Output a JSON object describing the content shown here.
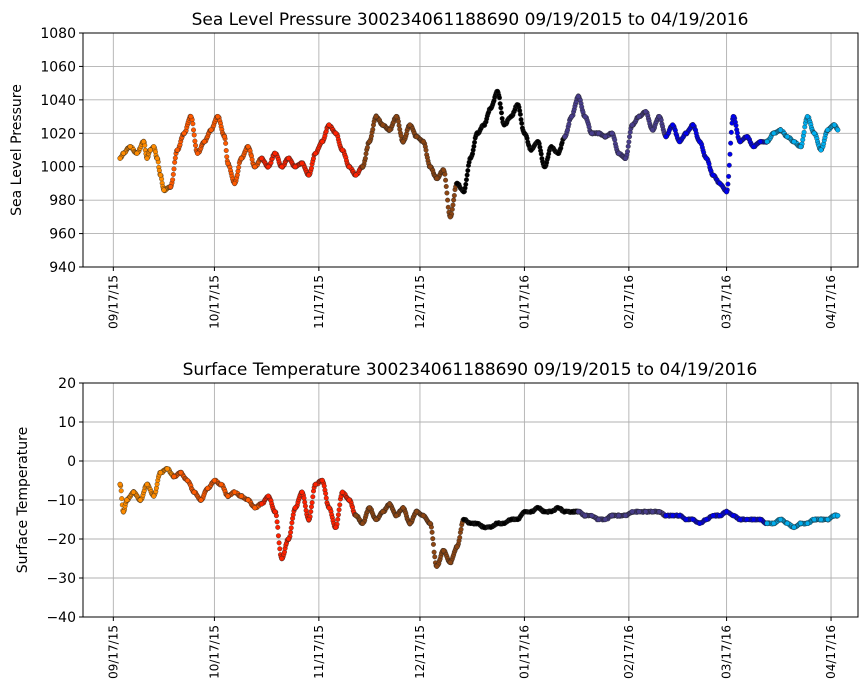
{
  "chart_data": [
    {
      "type": "scatter",
      "title": "Sea Level Pressure 300234061188690  09/19/2015 to 04/19/2016",
      "xlabel": "",
      "ylabel": "Sea Level Pressure",
      "ylim": [
        940,
        1080
      ],
      "yticks": [
        940,
        960,
        980,
        1000,
        1020,
        1040,
        1060,
        1080
      ],
      "xlim": [
        "2015-09-08",
        "2016-04-25"
      ],
      "xticks": [
        "2015-09-17",
        "2015-10-17",
        "2015-11-17",
        "2015-12-17",
        "2016-01-17",
        "2016-02-17",
        "2016-03-17",
        "2016-04-17"
      ],
      "xtick_labels": [
        "09/17/15",
        "10/17/15",
        "11/17/15",
        "12/17/15",
        "01/17/16",
        "02/17/16",
        "03/17/16",
        "04/17/16"
      ],
      "grid": true,
      "series": [
        {
          "color": "#ff8c00",
          "x": [
            "2015-09-19",
            "2015-09-20",
            "2015-09-22",
            "2015-09-24",
            "2015-09-26",
            "2015-09-27",
            "2015-09-28",
            "2015-09-29",
            "2015-09-30",
            "2015-10-01",
            "2015-10-02",
            "2015-10-04"
          ],
          "values": [
            1005,
            1008,
            1012,
            1008,
            1015,
            1005,
            1010,
            1012,
            1005,
            995,
            986,
            988
          ]
        },
        {
          "color": "#ff5a00",
          "x": [
            "2015-10-04",
            "2015-10-06",
            "2015-10-08",
            "2015-10-10",
            "2015-10-12",
            "2015-10-14",
            "2015-10-16",
            "2015-10-18",
            "2015-10-20",
            "2015-10-21",
            "2015-10-23",
            "2015-10-25",
            "2015-10-27",
            "2015-10-29",
            "2015-10-31"
          ],
          "values": [
            988,
            1010,
            1020,
            1030,
            1008,
            1015,
            1022,
            1030,
            1018,
            1002,
            990,
            1005,
            1012,
            1000,
            1005
          ]
        },
        {
          "color": "#ff2200",
          "x": [
            "2015-10-31",
            "2015-11-02",
            "2015-11-04",
            "2015-11-06",
            "2015-11-08",
            "2015-11-10",
            "2015-11-12",
            "2015-11-14",
            "2015-11-16",
            "2015-11-18",
            "2015-11-20",
            "2015-11-22",
            "2015-11-24",
            "2015-11-26",
            "2015-11-28",
            "2015-11-30"
          ],
          "values": [
            1005,
            1000,
            1008,
            1000,
            1005,
            1000,
            1002,
            995,
            1008,
            1015,
            1025,
            1020,
            1010,
            1000,
            995,
            1000
          ]
        },
        {
          "color": "#8b4513",
          "x": [
            "2015-11-30",
            "2015-12-02",
            "2015-12-04",
            "2015-12-06",
            "2015-12-08",
            "2015-12-10",
            "2015-12-12",
            "2015-12-14",
            "2015-12-16",
            "2015-12-18",
            "2015-12-20",
            "2015-12-22",
            "2015-12-24",
            "2015-12-26",
            "2015-12-28"
          ],
          "values": [
            1000,
            1015,
            1030,
            1025,
            1022,
            1030,
            1015,
            1025,
            1018,
            1015,
            1000,
            993,
            998,
            970,
            990
          ]
        },
        {
          "color": "#000000",
          "x": [
            "2015-12-28",
            "2015-12-30",
            "2016-01-01",
            "2016-01-03",
            "2016-01-05",
            "2016-01-07",
            "2016-01-09",
            "2016-01-11",
            "2016-01-13",
            "2016-01-15",
            "2016-01-17",
            "2016-01-19",
            "2016-01-21",
            "2016-01-23",
            "2016-01-25",
            "2016-01-27",
            "2016-01-29"
          ],
          "values": [
            990,
            985,
            1005,
            1020,
            1025,
            1035,
            1045,
            1025,
            1030,
            1037,
            1020,
            1010,
            1015,
            1000,
            1012,
            1008,
            1018
          ]
        },
        {
          "color": "#483d8b",
          "x": [
            "2016-01-29",
            "2016-01-31",
            "2016-02-02",
            "2016-02-04",
            "2016-02-06",
            "2016-02-08",
            "2016-02-10",
            "2016-02-12",
            "2016-02-14",
            "2016-02-16",
            "2016-02-18",
            "2016-02-20",
            "2016-02-22",
            "2016-02-24",
            "2016-02-26",
            "2016-02-28"
          ],
          "values": [
            1018,
            1030,
            1042,
            1030,
            1020,
            1020,
            1018,
            1020,
            1008,
            1005,
            1025,
            1030,
            1033,
            1022,
            1030,
            1018
          ]
        },
        {
          "color": "#0000ee",
          "x": [
            "2016-02-28",
            "2016-03-01",
            "2016-03-03",
            "2016-03-05",
            "2016-03-07",
            "2016-03-09",
            "2016-03-11",
            "2016-03-13",
            "2016-03-15",
            "2016-03-17",
            "2016-03-19",
            "2016-03-21",
            "2016-03-23",
            "2016-03-25",
            "2016-03-27",
            "2016-03-29"
          ],
          "values": [
            1018,
            1025,
            1015,
            1020,
            1025,
            1015,
            1005,
            995,
            990,
            985,
            1030,
            1015,
            1018,
            1012,
            1015,
            1015
          ]
        },
        {
          "color": "#00aeef",
          "x": [
            "2016-03-29",
            "2016-03-31",
            "2016-04-02",
            "2016-04-04",
            "2016-04-06",
            "2016-04-08",
            "2016-04-10",
            "2016-04-12",
            "2016-04-14",
            "2016-04-16",
            "2016-04-18",
            "2016-04-19"
          ],
          "values": [
            1015,
            1020,
            1022,
            1018,
            1015,
            1012,
            1030,
            1020,
            1010,
            1022,
            1025,
            1022
          ]
        }
      ]
    },
    {
      "type": "scatter",
      "title": "Surface Temperature 300234061188690  09/19/2015 to 04/19/2016",
      "xlabel": "",
      "ylabel": "Surface Temperature",
      "ylim": [
        -40,
        20
      ],
      "yticks": [
        -40,
        -30,
        -20,
        -10,
        0,
        10,
        20
      ],
      "xlim": [
        "2015-09-08",
        "2016-04-25"
      ],
      "xticks": [
        "2015-09-17",
        "2015-10-17",
        "2015-11-17",
        "2015-12-17",
        "2016-01-17",
        "2016-02-17",
        "2016-03-17",
        "2016-04-17"
      ],
      "xtick_labels": [
        "09/17/15",
        "10/17/15",
        "11/17/15",
        "12/17/15",
        "01/17/16",
        "02/17/16",
        "03/17/16",
        "04/17/16"
      ],
      "grid": true,
      "series": [
        {
          "color": "#ff8c00",
          "x": [
            "2015-09-19",
            "2015-09-20",
            "2015-09-21",
            "2015-09-23",
            "2015-09-25",
            "2015-09-27",
            "2015-09-29",
            "2015-10-01",
            "2015-10-03",
            "2015-10-05"
          ],
          "values": [
            -6,
            -13,
            -10,
            -8,
            -10,
            -6,
            -9,
            -3,
            -2,
            -4
          ]
        },
        {
          "color": "#ff5a00",
          "x": [
            "2015-10-05",
            "2015-10-07",
            "2015-10-09",
            "2015-10-11",
            "2015-10-13",
            "2015-10-15",
            "2015-10-17",
            "2015-10-19",
            "2015-10-21",
            "2015-10-23",
            "2015-10-25",
            "2015-10-27",
            "2015-10-29",
            "2015-10-31"
          ],
          "values": [
            -4,
            -3,
            -5,
            -8,
            -10,
            -7,
            -5,
            -6,
            -9,
            -8,
            -9,
            -10,
            -12,
            -11
          ]
        },
        {
          "color": "#ff2200",
          "x": [
            "2015-10-31",
            "2015-11-02",
            "2015-11-04",
            "2015-11-06",
            "2015-11-08",
            "2015-11-10",
            "2015-11-12",
            "2015-11-14",
            "2015-11-16",
            "2015-11-18",
            "2015-11-20",
            "2015-11-22",
            "2015-11-24",
            "2015-11-26",
            "2015-11-28"
          ],
          "values": [
            -11,
            -9,
            -13,
            -25,
            -20,
            -12,
            -8,
            -15,
            -6,
            -5,
            -12,
            -17,
            -8,
            -10,
            -14
          ]
        },
        {
          "color": "#8b4513",
          "x": [
            "2015-11-28",
            "2015-11-30",
            "2015-12-02",
            "2015-12-04",
            "2015-12-06",
            "2015-12-08",
            "2015-12-10",
            "2015-12-12",
            "2015-12-14",
            "2015-12-16",
            "2015-12-18",
            "2015-12-20",
            "2015-12-22",
            "2015-12-24",
            "2015-12-26",
            "2015-12-28",
            "2015-12-30"
          ],
          "values": [
            -14,
            -16,
            -12,
            -15,
            -13,
            -11,
            -14,
            -12,
            -16,
            -13,
            -14,
            -16,
            -27,
            -23,
            -26,
            -22,
            -15
          ]
        },
        {
          "color": "#000000",
          "x": [
            "2015-12-30",
            "2016-01-01",
            "2016-01-03",
            "2016-01-05",
            "2016-01-07",
            "2016-01-09",
            "2016-01-11",
            "2016-01-13",
            "2016-01-15",
            "2016-01-17",
            "2016-01-19",
            "2016-01-21",
            "2016-01-23",
            "2016-01-25",
            "2016-01-27",
            "2016-01-29",
            "2016-01-31",
            "2016-02-02"
          ],
          "values": [
            -15,
            -16,
            -16,
            -17,
            -17,
            -16,
            -16,
            -15,
            -15,
            -13,
            -13,
            -12,
            -13,
            -13,
            -12,
            -13,
            -13,
            -13
          ]
        },
        {
          "color": "#483d8b",
          "x": [
            "2016-02-02",
            "2016-02-04",
            "2016-02-06",
            "2016-02-08",
            "2016-02-10",
            "2016-02-12",
            "2016-02-14",
            "2016-02-16",
            "2016-02-18",
            "2016-02-20",
            "2016-02-22",
            "2016-02-24",
            "2016-02-26",
            "2016-02-28"
          ],
          "values": [
            -13,
            -14,
            -14,
            -15,
            -15,
            -14,
            -14,
            -14,
            -13,
            -13,
            -13,
            -13,
            -13,
            -14
          ]
        },
        {
          "color": "#0000ee",
          "x": [
            "2016-02-28",
            "2016-03-01",
            "2016-03-03",
            "2016-03-05",
            "2016-03-07",
            "2016-03-09",
            "2016-03-11",
            "2016-03-13",
            "2016-03-15",
            "2016-03-17",
            "2016-03-19",
            "2016-03-21",
            "2016-03-23",
            "2016-03-25",
            "2016-03-27",
            "2016-03-29"
          ],
          "values": [
            -14,
            -14,
            -14,
            -15,
            -15,
            -16,
            -15,
            -14,
            -14,
            -13,
            -14,
            -15,
            -15,
            -15,
            -15,
            -16
          ]
        },
        {
          "color": "#00aeef",
          "x": [
            "2016-03-29",
            "2016-03-31",
            "2016-04-02",
            "2016-04-04",
            "2016-04-06",
            "2016-04-08",
            "2016-04-10",
            "2016-04-12",
            "2016-04-14",
            "2016-04-16",
            "2016-04-18",
            "2016-04-19"
          ],
          "values": [
            -16,
            -16,
            -15,
            -16,
            -17,
            -16,
            -16,
            -15,
            -15,
            -15,
            -14,
            -14
          ]
        }
      ]
    }
  ]
}
